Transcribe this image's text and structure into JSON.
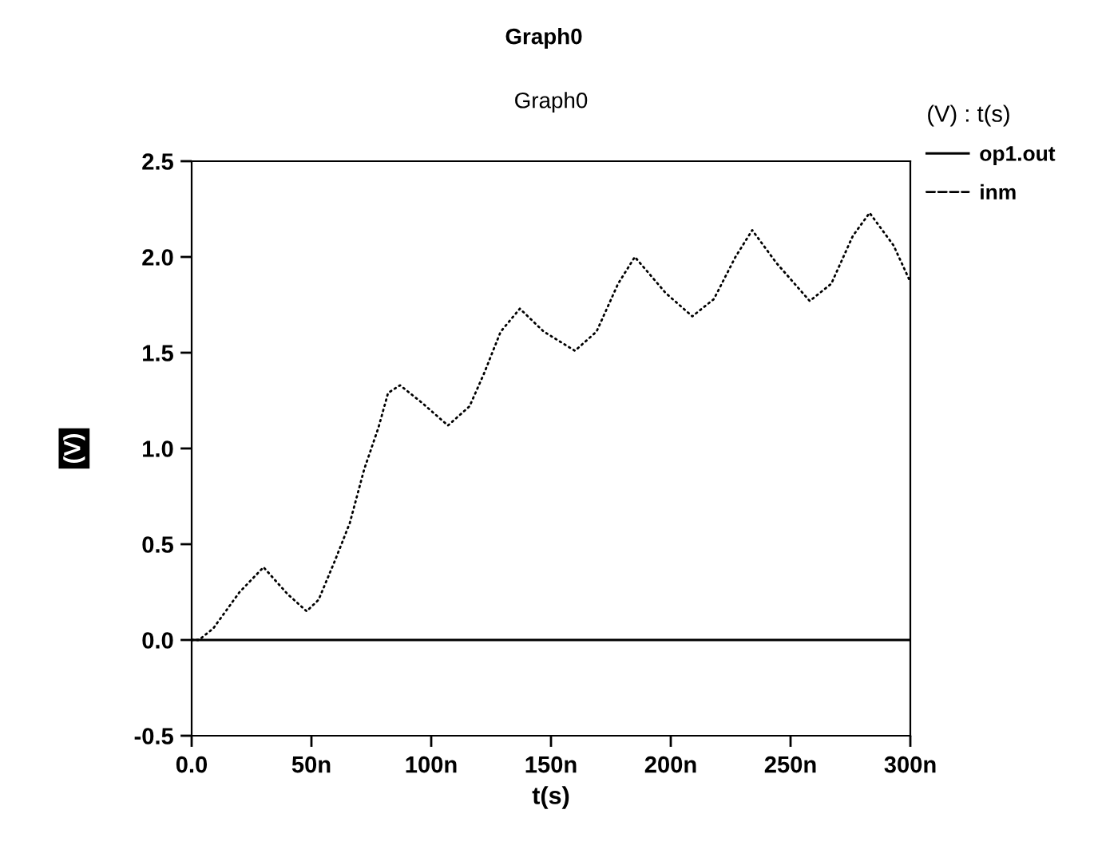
{
  "chart_data": {
    "type": "line",
    "title": "Graph0",
    "xlabel": "t(s)",
    "ylabel": "(V)",
    "legend_title": "(V) : t(s)",
    "annotations": [
      "Graph0"
    ],
    "xlim": [
      0,
      300
    ],
    "xticks": [
      {
        "value": 0,
        "label": "0.0"
      },
      {
        "value": 50,
        "label": "50n"
      },
      {
        "value": 100,
        "label": "100n"
      },
      {
        "value": 150,
        "label": "150n"
      },
      {
        "value": 200,
        "label": "200n"
      },
      {
        "value": 250,
        "label": "250n"
      },
      {
        "value": 300,
        "label": "300n"
      }
    ],
    "ylim": [
      -0.5,
      2.5
    ],
    "yticks": [
      {
        "value": -0.5,
        "label": "-0.5"
      },
      {
        "value": 0,
        "label": "0.0"
      },
      {
        "value": 0.5,
        "label": "0.5"
      },
      {
        "value": 1,
        "label": "1.0"
      },
      {
        "value": 1.5,
        "label": "1.5"
      },
      {
        "value": 2,
        "label": "2.0"
      },
      {
        "value": 2.5,
        "label": "2.5"
      }
    ],
    "grid": false,
    "legend": "top right",
    "series": [
      {
        "name": "op1.out",
        "color": "#000000",
        "line_style": "solid",
        "x": [
          0,
          300
        ],
        "values": [
          0,
          0
        ]
      },
      {
        "name": "inm",
        "color": "#000000",
        "line_style": "dotted",
        "x": [
          0,
          3,
          9,
          20,
          30,
          40,
          48,
          53,
          60,
          66,
          72,
          78,
          82,
          87,
          96,
          107,
          116,
          122,
          129,
          137,
          147,
          160,
          169,
          178,
          185,
          198,
          209,
          218,
          227,
          234,
          244,
          258,
          267,
          276,
          283,
          293,
          300
        ],
        "values": [
          0,
          0,
          0.06,
          0.25,
          0.38,
          0.24,
          0.15,
          0.21,
          0.42,
          0.61,
          0.89,
          1.11,
          1.29,
          1.33,
          1.24,
          1.12,
          1.22,
          1.39,
          1.61,
          1.73,
          1.61,
          1.51,
          1.61,
          1.86,
          2.0,
          1.81,
          1.69,
          1.78,
          2.0,
          2.14,
          1.97,
          1.77,
          1.86,
          2.11,
          2.23,
          2.06,
          1.87
        ]
      }
    ]
  }
}
